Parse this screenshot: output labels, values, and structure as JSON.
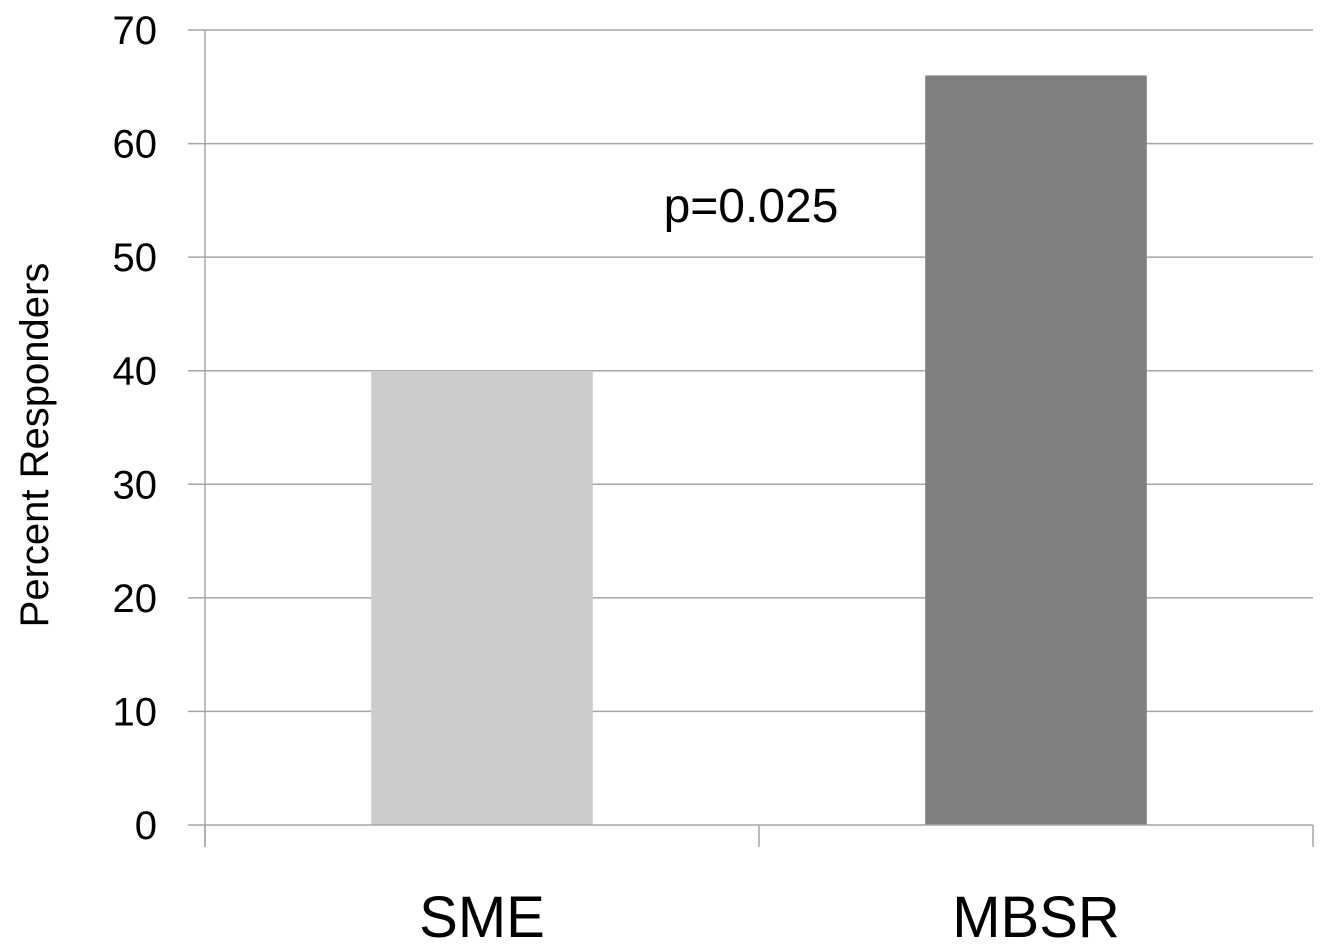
{
  "chart_data": {
    "type": "bar",
    "categories": [
      "SME",
      "MBSR"
    ],
    "values": [
      40,
      66
    ],
    "bar_colors": [
      "#cccccc",
      "#808080"
    ],
    "title": "",
    "xlabel": "",
    "ylabel": "Percent Responders",
    "ylim": [
      0,
      70
    ],
    "yticks": [
      0,
      10,
      20,
      30,
      40,
      50,
      60,
      70
    ],
    "grid": true,
    "annotations": [
      {
        "text": "p=0.025"
      }
    ]
  }
}
